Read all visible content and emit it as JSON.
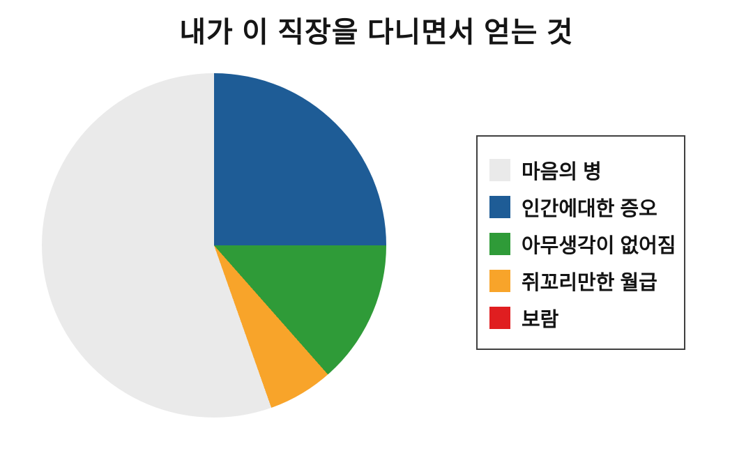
{
  "chart_data": {
    "type": "pie",
    "title": "내가 이 직장을 다니면서 얻는 것",
    "legend_position": "right",
    "start_angle": "12-oclock",
    "direction": "clockwise",
    "grid": false,
    "slices": [
      {
        "label": "마음의 병",
        "value_pct": 55.4,
        "color": "#EAEAEA"
      },
      {
        "label": "인간에대한 증오",
        "value_pct": 25.0,
        "color": "#1E5C96"
      },
      {
        "label": "아무생각이 없어짐",
        "value_pct": 13.5,
        "color": "#2F9B38"
      },
      {
        "label": "쥐꼬리만한 월급",
        "value_pct": 6.1,
        "color": "#F8A42A"
      },
      {
        "label": "보람",
        "value_pct": 0.0,
        "color": "#E01E20"
      }
    ],
    "pie_clockwise_order_from_top": [
      1,
      2,
      3,
      4,
      0
    ]
  }
}
